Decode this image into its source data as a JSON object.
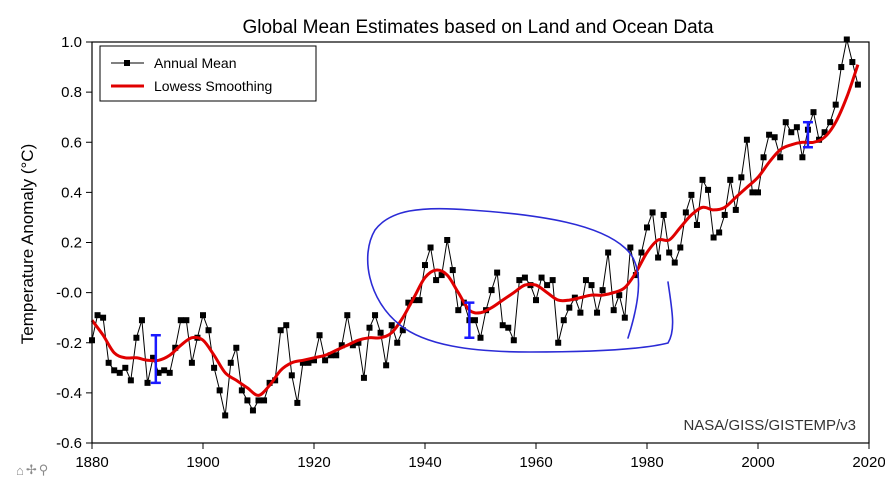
{
  "chart_data": {
    "type": "line",
    "title": "Global Mean Estimates based on Land and Ocean Data",
    "ylabel": "Temperature Anomaly (°C)",
    "xlabel": "",
    "xlim": [
      1880,
      2020
    ],
    "ylim": [
      -0.6,
      1.0
    ],
    "xticks": [
      1880,
      1900,
      1920,
      1940,
      1960,
      1980,
      2000,
      2020
    ],
    "yticks": [
      1.0,
      0.8,
      0.6,
      0.4,
      0.2,
      0.0,
      -0.2,
      -0.4,
      -0.6
    ],
    "ytick_labels": [
      "1.0",
      "0.8",
      "0.6",
      "0.4",
      "0.2",
      "-0.0",
      "-0.2",
      "-0.4",
      "-0.6"
    ],
    "grid": false,
    "legend_position": "top-left",
    "source_note": "NASA/GISS/GISTEMP/v3",
    "series": [
      {
        "name": "Annual Mean",
        "color": "#000000",
        "marker": "square",
        "x": [
          1880,
          1881,
          1882,
          1883,
          1884,
          1885,
          1886,
          1887,
          1888,
          1889,
          1890,
          1891,
          1892,
          1893,
          1894,
          1895,
          1896,
          1897,
          1898,
          1899,
          1900,
          1901,
          1902,
          1903,
          1904,
          1905,
          1906,
          1907,
          1908,
          1909,
          1910,
          1911,
          1912,
          1913,
          1914,
          1915,
          1916,
          1917,
          1918,
          1919,
          1920,
          1921,
          1922,
          1923,
          1924,
          1925,
          1926,
          1927,
          1928,
          1929,
          1930,
          1931,
          1932,
          1933,
          1934,
          1935,
          1936,
          1937,
          1938,
          1939,
          1940,
          1941,
          1942,
          1943,
          1944,
          1945,
          1946,
          1947,
          1948,
          1949,
          1950,
          1951,
          1952,
          1953,
          1954,
          1955,
          1956,
          1957,
          1958,
          1959,
          1960,
          1961,
          1962,
          1963,
          1964,
          1965,
          1966,
          1967,
          1968,
          1969,
          1970,
          1971,
          1972,
          1973,
          1974,
          1975,
          1976,
          1977,
          1978,
          1979,
          1980,
          1981,
          1982,
          1983,
          1984,
          1985,
          1986,
          1987,
          1988,
          1989,
          1990,
          1991,
          1992,
          1993,
          1994,
          1995,
          1996,
          1997,
          1998,
          1999,
          2000,
          2001,
          2002,
          2003,
          2004,
          2005,
          2006,
          2007,
          2008,
          2009,
          2010,
          2011,
          2012,
          2013,
          2014,
          2015,
          2016,
          2017,
          2018
        ],
        "values": [
          -0.19,
          -0.09,
          -0.1,
          -0.28,
          -0.31,
          -0.32,
          -0.3,
          -0.35,
          -0.18,
          -0.11,
          -0.36,
          -0.26,
          -0.32,
          -0.31,
          -0.32,
          -0.22,
          -0.11,
          -0.11,
          -0.28,
          -0.18,
          -0.09,
          -0.15,
          -0.3,
          -0.39,
          -0.49,
          -0.28,
          -0.22,
          -0.39,
          -0.43,
          -0.47,
          -0.43,
          -0.43,
          -0.36,
          -0.35,
          -0.15,
          -0.13,
          -0.33,
          -0.44,
          -0.28,
          -0.28,
          -0.27,
          -0.17,
          -0.27,
          -0.25,
          -0.25,
          -0.21,
          -0.09,
          -0.21,
          -0.2,
          -0.34,
          -0.14,
          -0.09,
          -0.16,
          -0.29,
          -0.13,
          -0.2,
          -0.15,
          -0.04,
          -0.03,
          -0.03,
          0.11,
          0.18,
          0.05,
          0.07,
          0.21,
          0.09,
          -0.07,
          -0.04,
          -0.11,
          -0.11,
          -0.18,
          -0.07,
          0.01,
          0.08,
          -0.13,
          -0.14,
          -0.19,
          0.05,
          0.06,
          0.03,
          -0.03,
          0.06,
          0.03,
          0.05,
          -0.2,
          -0.11,
          -0.06,
          -0.02,
          -0.08,
          0.05,
          0.03,
          -0.08,
          0.01,
          0.16,
          -0.07,
          -0.01,
          -0.1,
          0.18,
          0.07,
          0.16,
          0.26,
          0.32,
          0.14,
          0.31,
          0.16,
          0.12,
          0.18,
          0.32,
          0.39,
          0.27,
          0.45,
          0.41,
          0.22,
          0.24,
          0.31,
          0.45,
          0.33,
          0.46,
          0.61,
          0.4,
          0.4,
          0.54,
          0.63,
          0.62,
          0.54,
          0.68,
          0.64,
          0.66,
          0.54,
          0.65,
          0.72,
          0.61,
          0.64,
          0.68,
          0.75,
          0.9,
          1.01,
          0.92,
          0.83
        ]
      },
      {
        "name": "Lowess Smoothing",
        "color": "#e00000",
        "x": [
          1880,
          1882,
          1884,
          1886,
          1888,
          1890,
          1892,
          1894,
          1896,
          1898,
          1900,
          1902,
          1904,
          1906,
          1908,
          1910,
          1912,
          1914,
          1916,
          1918,
          1920,
          1922,
          1924,
          1926,
          1928,
          1930,
          1932,
          1934,
          1936,
          1938,
          1940,
          1942,
          1944,
          1946,
          1948,
          1950,
          1952,
          1954,
          1956,
          1958,
          1960,
          1962,
          1964,
          1966,
          1968,
          1970,
          1972,
          1974,
          1976,
          1978,
          1980,
          1982,
          1984,
          1986,
          1988,
          1990,
          1992,
          1994,
          1996,
          1998,
          2000,
          2002,
          2004,
          2006,
          2008,
          2010,
          2012,
          2014,
          2016,
          2018
        ],
        "values": [
          -0.11,
          -0.17,
          -0.24,
          -0.26,
          -0.26,
          -0.27,
          -0.27,
          -0.25,
          -0.21,
          -0.18,
          -0.19,
          -0.25,
          -0.32,
          -0.35,
          -0.38,
          -0.41,
          -0.37,
          -0.31,
          -0.28,
          -0.27,
          -0.26,
          -0.25,
          -0.23,
          -0.21,
          -0.19,
          -0.18,
          -0.18,
          -0.16,
          -0.1,
          -0.02,
          0.06,
          0.09,
          0.07,
          0.0,
          -0.07,
          -0.08,
          -0.06,
          -0.03,
          0.0,
          0.03,
          0.03,
          0.0,
          -0.03,
          -0.03,
          -0.02,
          -0.01,
          -0.01,
          0.0,
          0.02,
          0.08,
          0.16,
          0.21,
          0.21,
          0.26,
          0.31,
          0.34,
          0.33,
          0.34,
          0.38,
          0.42,
          0.46,
          0.52,
          0.57,
          0.59,
          0.6,
          0.6,
          0.62,
          0.68,
          0.78,
          0.91
        ]
      }
    ],
    "error_bars": [
      {
        "x": 1891.5,
        "low": -0.36,
        "high": -0.17,
        "color": "#1a1aff"
      },
      {
        "x": 1948,
        "low": -0.18,
        "high": -0.04,
        "color": "#1a1aff"
      },
      {
        "x": 2009,
        "low": 0.58,
        "high": 0.68,
        "color": "#1a1aff"
      }
    ],
    "annotation_color": "#2b2bd6"
  },
  "toolbar": {
    "home_glyph": "⌂",
    "move_glyph": "✢",
    "zoom_glyph": "⚲"
  }
}
